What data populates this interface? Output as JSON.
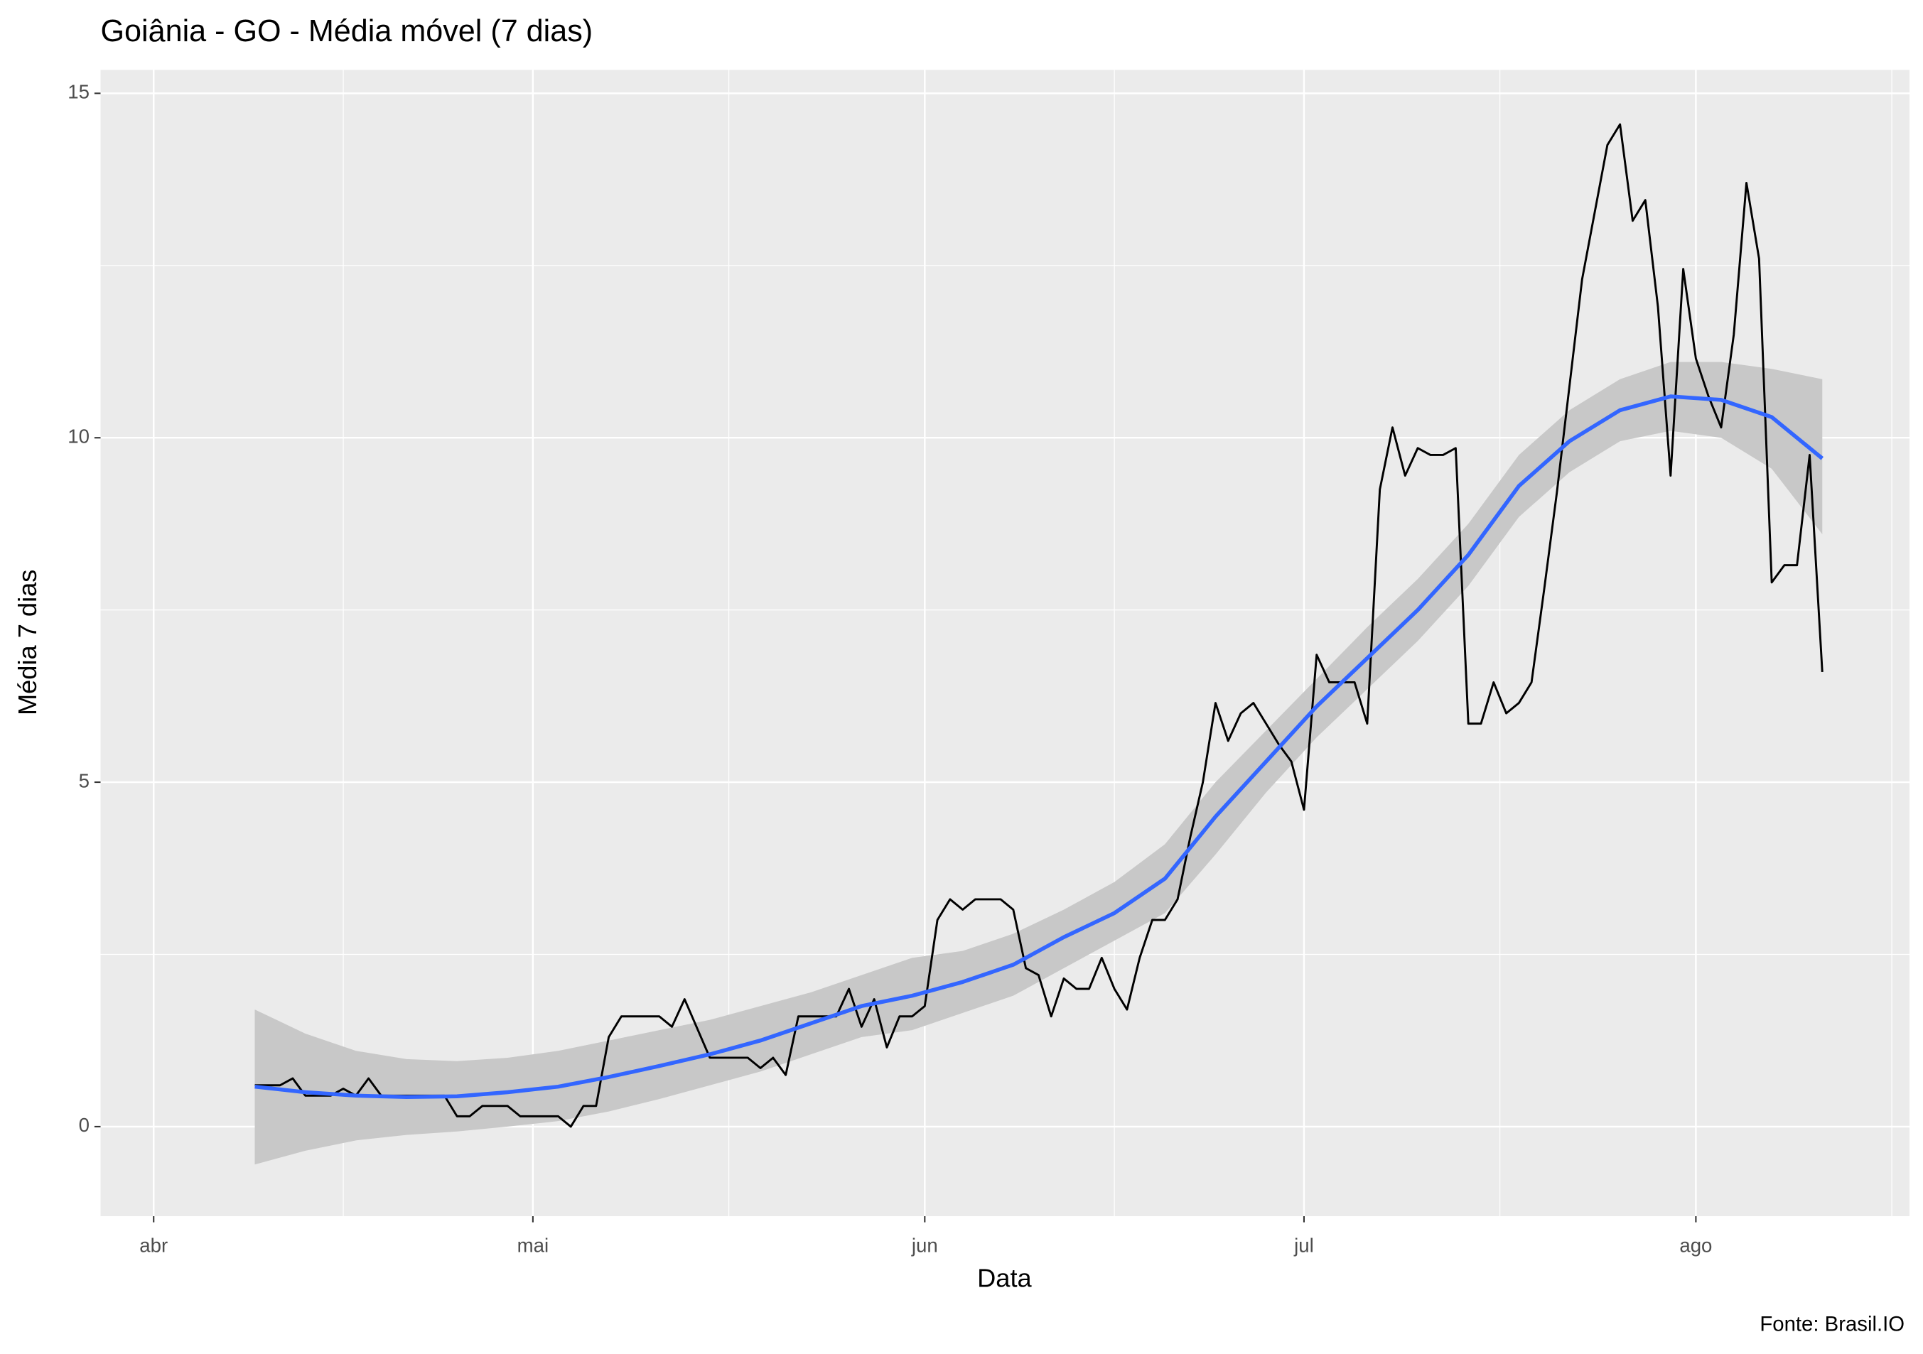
{
  "chart_data": {
    "type": "line",
    "title": "Goiânia - GO - Média móvel (7 dias)",
    "x_label": "Data",
    "y_label": "Média 7 dias",
    "caption": "Fonte: Brasil.IO",
    "xlim": [
      -4.2,
      138.9
    ],
    "ylim": [
      -1.3,
      15.34
    ],
    "xticks": [
      {
        "value": 0,
        "label": "abr"
      },
      {
        "value": 30,
        "label": "mai"
      },
      {
        "value": 61,
        "label": "jun"
      },
      {
        "value": 91,
        "label": "jul"
      },
      {
        "value": 122,
        "label": "ago"
      }
    ],
    "yticks": [
      0,
      5,
      10,
      15
    ],
    "grid": true,
    "background": "#ebebeb",
    "series": [
      {
        "color": "#000000",
        "x": [
          8,
          10,
          11,
          12,
          14,
          15,
          16,
          17,
          18,
          23,
          24,
          25,
          26,
          28,
          29,
          32,
          33,
          34,
          35,
          36,
          37,
          40,
          41,
          42,
          44,
          47,
          48,
          49,
          50,
          51,
          54,
          55,
          56,
          57,
          58,
          59,
          60,
          61,
          62,
          63,
          64,
          65,
          67,
          68,
          69,
          70,
          71,
          72,
          73,
          74,
          75,
          76,
          77,
          78,
          79,
          80,
          81,
          82,
          83,
          84,
          85,
          86,
          87,
          88,
          89,
          90,
          91,
          92,
          93,
          95,
          96,
          97,
          98,
          99,
          100,
          101,
          102,
          103,
          104,
          105,
          106,
          107,
          108,
          109,
          110,
          111,
          113,
          115,
          116,
          117,
          118,
          119,
          120,
          121,
          122,
          123,
          124,
          125,
          126,
          127,
          128,
          129,
          130,
          131,
          132
        ],
        "values": [
          0.6,
          0.6,
          0.7,
          0.45,
          0.45,
          0.55,
          0.45,
          0.7,
          0.45,
          0.45,
          0.15,
          0.15,
          0.3,
          0.3,
          0.15,
          0.15,
          0.0,
          0.3,
          0.3,
          1.3,
          1.6,
          1.6,
          1.45,
          1.85,
          1.0,
          1.0,
          0.85,
          1.0,
          0.75,
          1.6,
          1.6,
          2.0,
          1.45,
          1.85,
          1.15,
          1.6,
          1.6,
          1.75,
          3.0,
          3.3,
          3.15,
          3.3,
          3.3,
          3.15,
          2.3,
          2.2,
          1.6,
          2.15,
          2.0,
          2.0,
          2.45,
          2.0,
          1.7,
          2.45,
          3.0,
          3.0,
          3.3,
          4.2,
          5.0,
          6.15,
          5.6,
          6.0,
          6.15,
          5.85,
          5.55,
          5.3,
          4.6,
          6.85,
          6.45,
          6.45,
          5.85,
          9.25,
          10.15,
          9.45,
          9.85,
          9.75,
          9.75,
          9.85,
          5.85,
          5.85,
          6.45,
          6.0,
          6.15,
          6.45,
          7.8,
          9.2,
          12.3,
          14.25,
          14.55,
          13.15,
          13.45,
          11.9,
          9.45,
          12.45,
          11.15,
          10.6,
          10.15,
          11.5,
          13.7,
          12.6,
          7.9,
          8.15,
          8.15,
          9.75,
          6.6
        ]
      },
      {
        "color": "#3366ff",
        "band_color": "#c8c8c8",
        "x": [
          8,
          12,
          16,
          20,
          24,
          28,
          32,
          36,
          40,
          44,
          48,
          52,
          56,
          60,
          64,
          68,
          72,
          76,
          80,
          84,
          88,
          92,
          96,
          100,
          104,
          108,
          112,
          116,
          120,
          124,
          128,
          132
        ],
        "values": [
          0.58,
          0.5,
          0.45,
          0.43,
          0.44,
          0.5,
          0.58,
          0.72,
          0.88,
          1.05,
          1.25,
          1.5,
          1.75,
          1.9,
          2.1,
          2.35,
          2.75,
          3.1,
          3.6,
          4.5,
          5.3,
          6.1,
          6.8,
          7.5,
          8.3,
          9.3,
          9.95,
          10.4,
          10.6,
          10.55,
          10.3,
          9.7
        ],
        "lower": [
          -0.55,
          -0.35,
          -0.2,
          -0.12,
          -0.07,
          0.0,
          0.08,
          0.22,
          0.4,
          0.6,
          0.8,
          1.05,
          1.3,
          1.4,
          1.65,
          1.9,
          2.3,
          2.7,
          3.1,
          3.95,
          4.85,
          5.65,
          6.35,
          7.05,
          7.85,
          8.85,
          9.5,
          9.95,
          10.1,
          10.0,
          9.55,
          8.6
        ],
        "upper": [
          1.7,
          1.35,
          1.1,
          0.98,
          0.95,
          1.0,
          1.1,
          1.25,
          1.4,
          1.55,
          1.75,
          1.95,
          2.2,
          2.45,
          2.55,
          2.8,
          3.15,
          3.55,
          4.1,
          5.0,
          5.75,
          6.5,
          7.25,
          7.95,
          8.75,
          9.75,
          10.4,
          10.85,
          11.1,
          11.1,
          11.0,
          10.85
        ]
      }
    ]
  }
}
